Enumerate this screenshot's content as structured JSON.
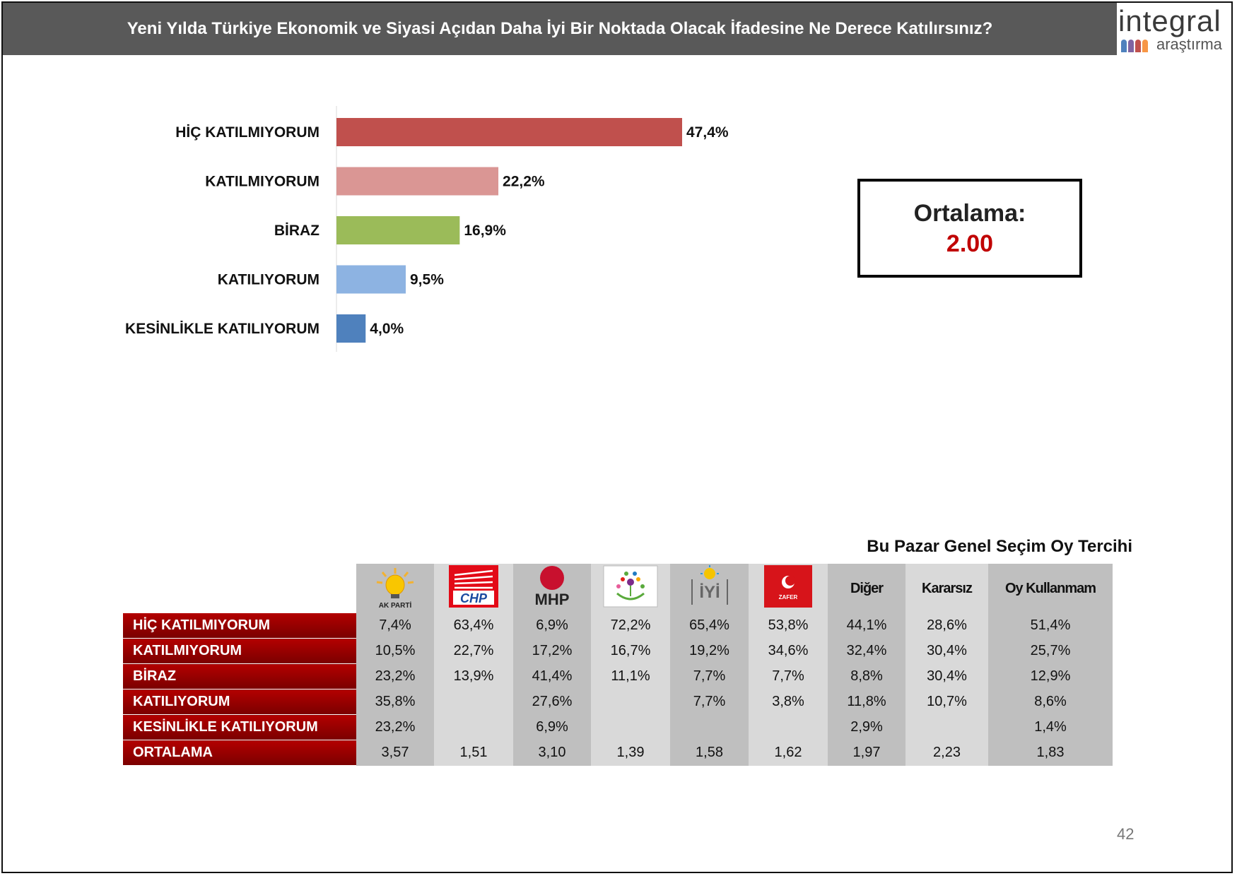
{
  "header": {
    "title": "Yeni Yılda Türkiye Ekonomik ve Siyasi Açıdan Daha İyi Bir Noktada Olacak İfadesine Ne Derece Katılırsınız?"
  },
  "logo": {
    "word": "integral",
    "sub": "araştırma"
  },
  "chart_data": {
    "type": "bar",
    "orientation": "horizontal",
    "categories": [
      "HİÇ KATILMIYORUM",
      "KATILMIYORUM",
      "BİRAZ",
      "KATILIYORUM",
      "KESİNLİKLE KATILIYORUM"
    ],
    "values": [
      47.4,
      22.2,
      16.9,
      9.5,
      4.0
    ],
    "value_labels": [
      "47,4%",
      "22,2%",
      "16,9%",
      "9,5%",
      "4,0%"
    ],
    "colors": [
      "#c0504d",
      "#da9694",
      "#9bbb59",
      "#8db3e2",
      "#4f81bd"
    ],
    "xlim": [
      0,
      50
    ],
    "grid": false
  },
  "average": {
    "label": "Ortalama:",
    "value": "2.00"
  },
  "crosstab": {
    "title": "Bu Pazar Genel Seçim Oy Tercihi",
    "columns": [
      {
        "key": "akp",
        "type": "logo",
        "logo_text": "AK PARTİ",
        "icon": "akp-logo-icon"
      },
      {
        "key": "chp",
        "type": "logo",
        "logo_text": "CHP",
        "icon": "chp-logo-icon"
      },
      {
        "key": "mhp",
        "type": "logo",
        "logo_text": "MHP",
        "icon": "mhp-logo-icon"
      },
      {
        "key": "yesilsol",
        "type": "logo",
        "logo_text": "",
        "icon": "yesil-sol-logo-icon"
      },
      {
        "key": "iyi",
        "type": "logo",
        "logo_text": "İYİ",
        "icon": "iyi-logo-icon"
      },
      {
        "key": "zafer",
        "type": "logo",
        "logo_text": "ZAFER",
        "icon": "zafer-logo-icon"
      },
      {
        "key": "diger",
        "type": "text",
        "label": "Diğer"
      },
      {
        "key": "kararsiz",
        "type": "text",
        "label": "Kararsız"
      },
      {
        "key": "oykullanmam",
        "type": "text",
        "label": "Oy Kullanmam"
      }
    ],
    "rows": [
      {
        "label": "HİÇ KATILMIYORUM",
        "values": [
          "7,4%",
          "63,4%",
          "6,9%",
          "72,2%",
          "65,4%",
          "53,8%",
          "44,1%",
          "28,6%",
          "51,4%"
        ]
      },
      {
        "label": "KATILMIYORUM",
        "values": [
          "10,5%",
          "22,7%",
          "17,2%",
          "16,7%",
          "19,2%",
          "34,6%",
          "32,4%",
          "30,4%",
          "25,7%"
        ]
      },
      {
        "label": "BİRAZ",
        "values": [
          "23,2%",
          "13,9%",
          "41,4%",
          "11,1%",
          "7,7%",
          "7,7%",
          "8,8%",
          "30,4%",
          "12,9%"
        ]
      },
      {
        "label": "KATILIYORUM",
        "values": [
          "35,8%",
          "",
          "27,6%",
          "",
          "7,7%",
          "3,8%",
          "11,8%",
          "10,7%",
          "8,6%"
        ]
      },
      {
        "label": "KESİNLİKLE KATILIYORUM",
        "values": [
          "23,2%",
          "",
          "6,9%",
          "",
          "",
          "",
          "2,9%",
          "",
          "1,4%"
        ]
      },
      {
        "label": "ORTALAMA",
        "values": [
          "3,57",
          "1,51",
          "3,10",
          "1,39",
          "1,58",
          "1,62",
          "1,97",
          "2,23",
          "1,83"
        ]
      }
    ]
  },
  "page_number": "42"
}
